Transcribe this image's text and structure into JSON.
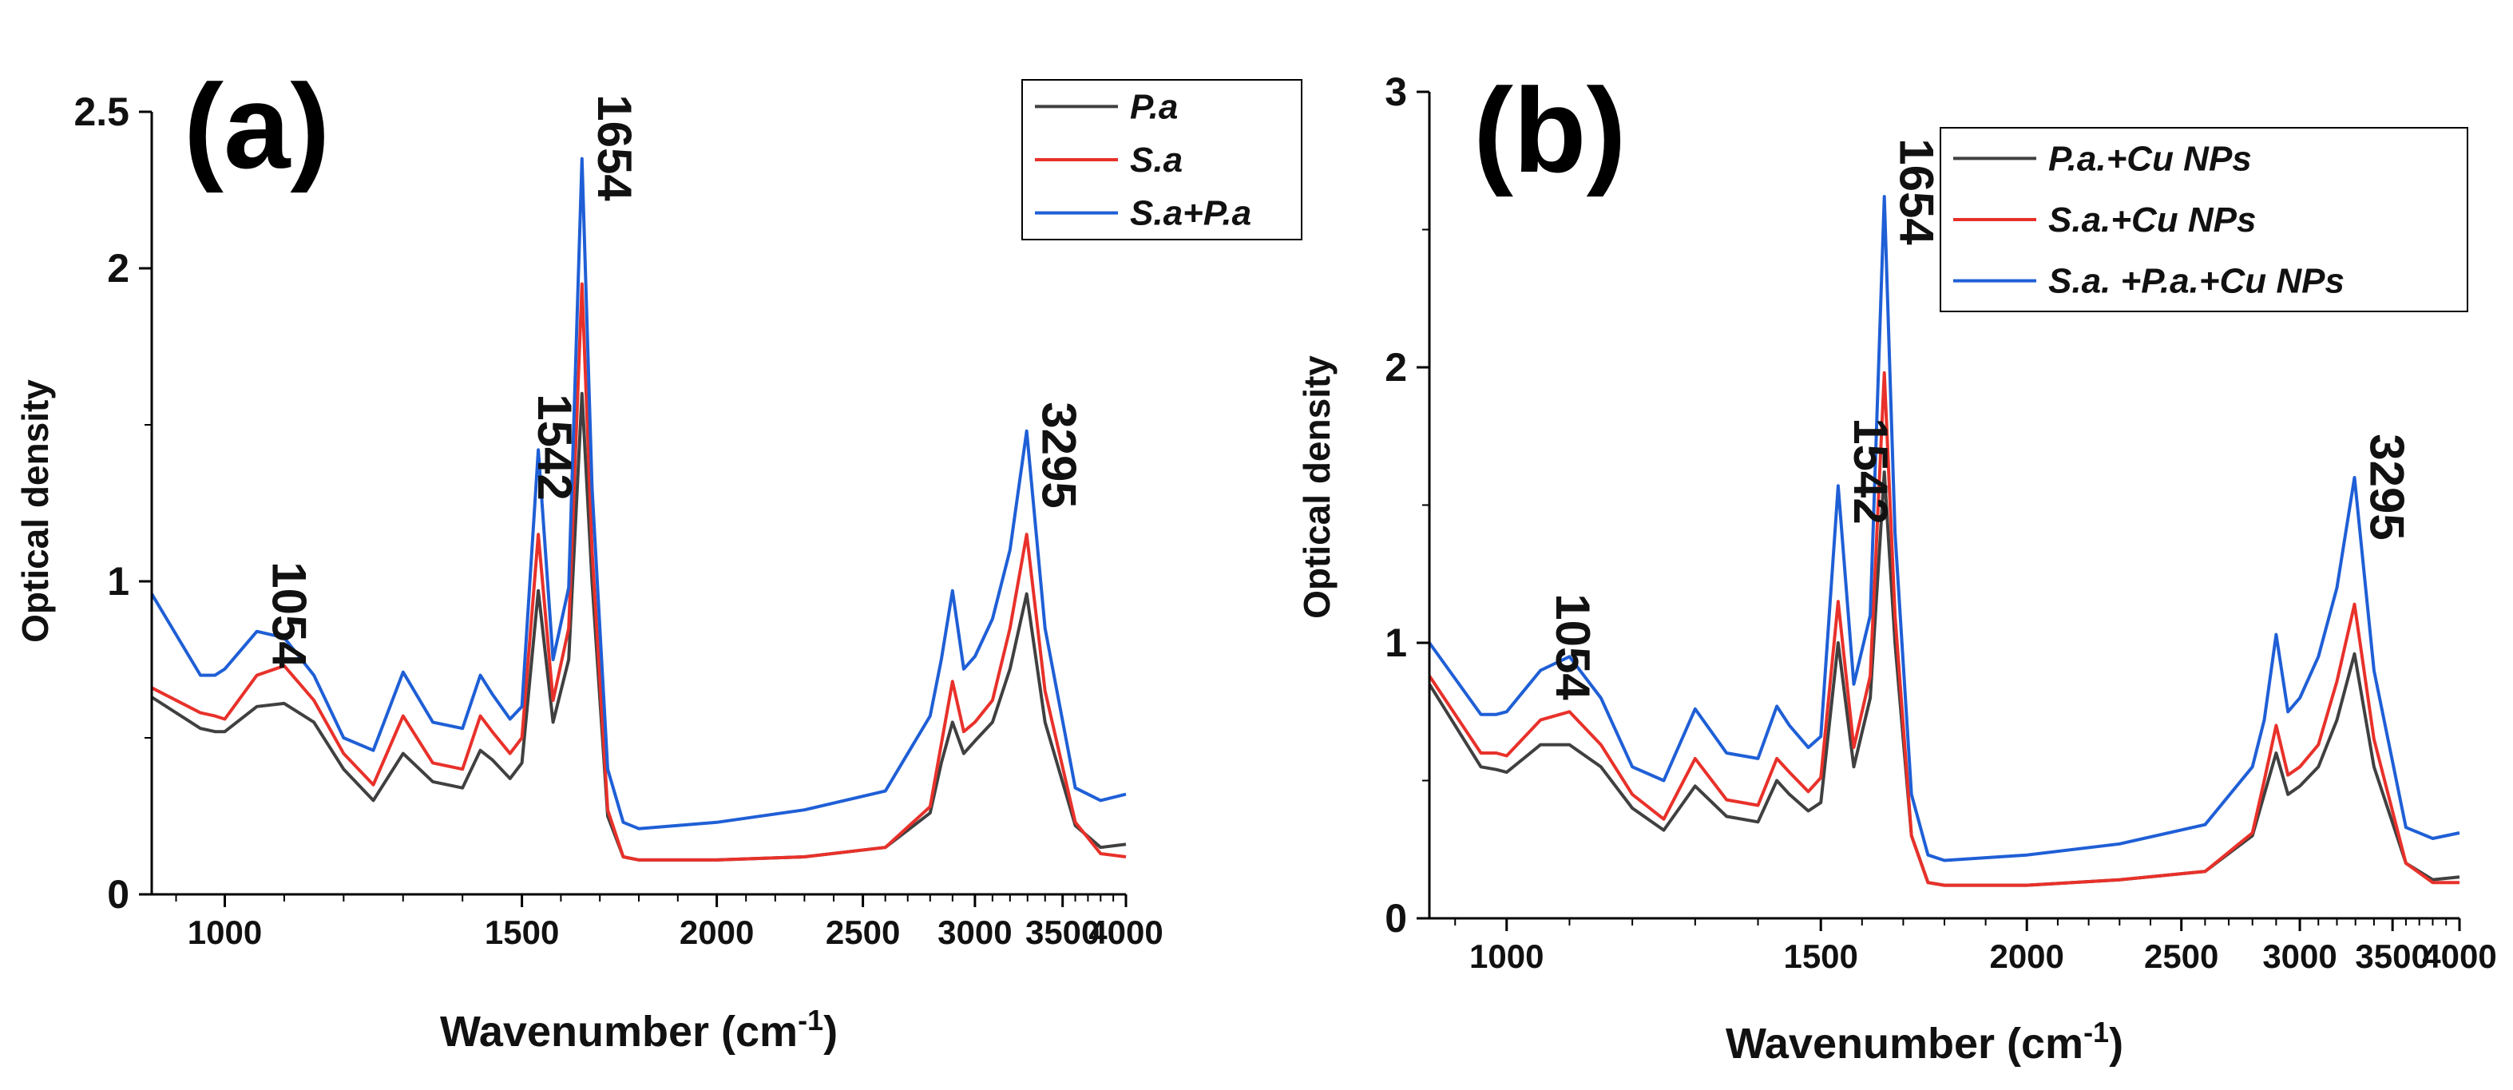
{
  "chart_data": [
    {
      "type": "line",
      "panel_label": "(a)",
      "xlabel": "Wavenumber (cm",
      "xlabel_sup": "-1",
      "xlabel_close": ")",
      "ylabel": "Optical density",
      "xlim": [
        850,
        4000
      ],
      "ylim": [
        0,
        2.5
      ],
      "xticks": [
        1000,
        1500,
        2000,
        2500,
        3000,
        3500,
        4000
      ],
      "yticks": [
        0,
        1,
        2,
        2.5
      ],
      "ytick_labels": [
        "0",
        "1",
        "2",
        "2.5"
      ],
      "annotations": [
        {
          "text": "1054",
          "x": 1054
        },
        {
          "text": "1542",
          "x": 1542
        },
        {
          "text": "1654",
          "x": 1654
        },
        {
          "text": "3295",
          "x": 3295
        }
      ],
      "legend_position": "top-right",
      "series": [
        {
          "name": "P.a",
          "color": "#404040",
          "x": [
            850,
            950,
            980,
            1000,
            1054,
            1100,
            1150,
            1200,
            1250,
            1300,
            1350,
            1400,
            1430,
            1450,
            1480,
            1500,
            1542,
            1580,
            1620,
            1654,
            1680,
            1720,
            1760,
            1800,
            2000,
            2300,
            2600,
            2800,
            2850,
            2900,
            2950,
            3000,
            3100,
            3200,
            3295,
            3400,
            3600,
            3800,
            4000
          ],
          "y": [
            0.63,
            0.53,
            0.52,
            0.52,
            0.6,
            0.61,
            0.55,
            0.4,
            0.3,
            0.45,
            0.36,
            0.34,
            0.46,
            0.43,
            0.37,
            0.42,
            0.97,
            0.55,
            0.75,
            1.6,
            1.0,
            0.25,
            0.12,
            0.11,
            0.11,
            0.12,
            0.15,
            0.26,
            0.42,
            0.55,
            0.45,
            0.49,
            0.55,
            0.72,
            0.96,
            0.55,
            0.22,
            0.15,
            0.16
          ]
        },
        {
          "name": "S.a",
          "color": "#e8312a",
          "x": [
            850,
            950,
            980,
            1000,
            1054,
            1100,
            1150,
            1200,
            1250,
            1300,
            1350,
            1400,
            1430,
            1450,
            1480,
            1500,
            1542,
            1580,
            1620,
            1654,
            1680,
            1720,
            1760,
            1800,
            2000,
            2300,
            2600,
            2800,
            2850,
            2900,
            2950,
            3000,
            3100,
            3200,
            3295,
            3400,
            3600,
            3800,
            4000
          ],
          "y": [
            0.66,
            0.58,
            0.57,
            0.56,
            0.7,
            0.73,
            0.62,
            0.45,
            0.35,
            0.57,
            0.42,
            0.4,
            0.57,
            0.52,
            0.45,
            0.5,
            1.15,
            0.62,
            0.85,
            1.95,
            1.1,
            0.27,
            0.12,
            0.11,
            0.11,
            0.12,
            0.15,
            0.28,
            0.48,
            0.68,
            0.52,
            0.55,
            0.62,
            0.85,
            1.15,
            0.65,
            0.23,
            0.13,
            0.12
          ]
        },
        {
          "name": "S.a+P.a",
          "color": "#1f5fd6",
          "x": [
            850,
            950,
            980,
            1000,
            1054,
            1100,
            1150,
            1200,
            1250,
            1300,
            1350,
            1400,
            1430,
            1450,
            1480,
            1500,
            1542,
            1580,
            1620,
            1654,
            1680,
            1720,
            1760,
            1800,
            2000,
            2300,
            2600,
            2800,
            2850,
            2900,
            2950,
            3000,
            3100,
            3200,
            3295,
            3400,
            3600,
            3800,
            4000
          ],
          "y": [
            0.96,
            0.7,
            0.7,
            0.72,
            0.84,
            0.82,
            0.7,
            0.5,
            0.46,
            0.71,
            0.55,
            0.53,
            0.7,
            0.64,
            0.56,
            0.6,
            1.42,
            0.75,
            0.98,
            2.35,
            1.3,
            0.4,
            0.23,
            0.21,
            0.23,
            0.27,
            0.33,
            0.57,
            0.75,
            0.97,
            0.72,
            0.76,
            0.88,
            1.1,
            1.48,
            0.85,
            0.34,
            0.3,
            0.32
          ]
        }
      ]
    },
    {
      "type": "line",
      "panel_label": "(b)",
      "xlabel": "Wavenumber (cm",
      "xlabel_sup": "-1",
      "xlabel_close": ")",
      "ylabel": "Optical density",
      "xlim": [
        850,
        4000
      ],
      "ylim": [
        0,
        3
      ],
      "xticks": [
        1000,
        1500,
        2000,
        2500,
        3000,
        3500,
        4000
      ],
      "yticks": [
        0,
        1,
        2,
        3
      ],
      "ytick_labels": [
        "0",
        "1",
        "2",
        "3"
      ],
      "annotations": [
        {
          "text": "1054",
          "x": 1054
        },
        {
          "text": "1542",
          "x": 1542
        },
        {
          "text": "1654",
          "x": 1654
        },
        {
          "text": "3295",
          "x": 3295
        }
      ],
      "legend_position": "top-right",
      "series": [
        {
          "name": "P.a.+Cu NPs",
          "color": "#404040",
          "x": [
            850,
            950,
            980,
            1000,
            1054,
            1100,
            1150,
            1200,
            1250,
            1300,
            1350,
            1400,
            1430,
            1450,
            1480,
            1500,
            1542,
            1580,
            1620,
            1654,
            1680,
            1720,
            1760,
            1800,
            2000,
            2300,
            2600,
            2800,
            2850,
            2900,
            2950,
            3000,
            3100,
            3200,
            3295,
            3400,
            3600,
            3800,
            4000
          ],
          "y": [
            0.85,
            0.55,
            0.54,
            0.53,
            0.63,
            0.63,
            0.55,
            0.4,
            0.32,
            0.48,
            0.37,
            0.35,
            0.5,
            0.45,
            0.39,
            0.42,
            1.0,
            0.55,
            0.8,
            1.62,
            1.0,
            0.3,
            0.13,
            0.12,
            0.12,
            0.14,
            0.17,
            0.3,
            0.45,
            0.6,
            0.45,
            0.48,
            0.55,
            0.72,
            0.96,
            0.55,
            0.2,
            0.14,
            0.15
          ]
        },
        {
          "name": "S.a.+Cu NPs",
          "color": "#e8312a",
          "x": [
            850,
            950,
            980,
            1000,
            1054,
            1100,
            1150,
            1200,
            1250,
            1300,
            1350,
            1400,
            1430,
            1450,
            1480,
            1500,
            1542,
            1580,
            1620,
            1654,
            1680,
            1720,
            1760,
            1800,
            2000,
            2300,
            2600,
            2800,
            2850,
            2900,
            2950,
            3000,
            3100,
            3200,
            3295,
            3400,
            3600,
            3800,
            4000
          ],
          "y": [
            0.88,
            0.6,
            0.6,
            0.59,
            0.72,
            0.75,
            0.63,
            0.45,
            0.36,
            0.58,
            0.43,
            0.41,
            0.58,
            0.53,
            0.46,
            0.51,
            1.15,
            0.62,
            0.88,
            1.98,
            1.1,
            0.3,
            0.13,
            0.12,
            0.12,
            0.14,
            0.17,
            0.31,
            0.5,
            0.7,
            0.52,
            0.55,
            0.63,
            0.86,
            1.14,
            0.65,
            0.2,
            0.13,
            0.13
          ]
        },
        {
          "name": "S.a. +P.a.+Cu NPs",
          "color": "#1f5fd6",
          "x": [
            850,
            950,
            980,
            1000,
            1054,
            1100,
            1150,
            1200,
            1250,
            1300,
            1350,
            1400,
            1430,
            1450,
            1480,
            1500,
            1542,
            1580,
            1620,
            1654,
            1680,
            1720,
            1760,
            1800,
            2000,
            2300,
            2600,
            2800,
            2850,
            2900,
            2950,
            3000,
            3100,
            3200,
            3295,
            3400,
            3600,
            3800,
            4000
          ],
          "y": [
            1.0,
            0.74,
            0.74,
            0.75,
            0.9,
            0.95,
            0.8,
            0.55,
            0.5,
            0.76,
            0.6,
            0.58,
            0.77,
            0.7,
            0.62,
            0.66,
            1.57,
            0.85,
            1.1,
            2.62,
            1.4,
            0.45,
            0.23,
            0.21,
            0.23,
            0.27,
            0.34,
            0.55,
            0.72,
            1.03,
            0.75,
            0.8,
            0.95,
            1.2,
            1.6,
            0.9,
            0.33,
            0.29,
            0.31
          ]
        }
      ]
    }
  ]
}
